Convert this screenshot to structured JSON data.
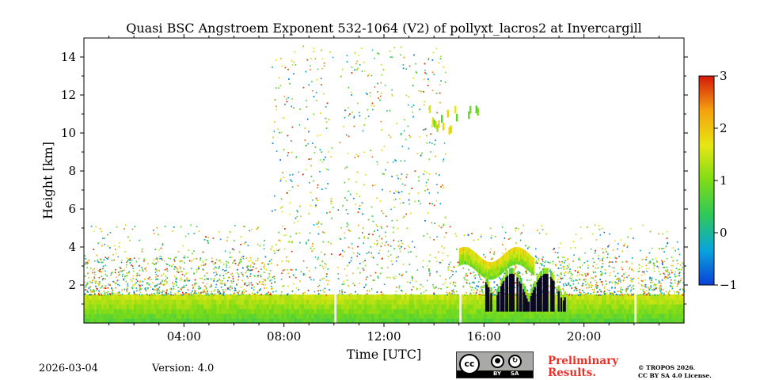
{
  "chart_data": {
    "type": "heatmap",
    "title": "Quasi BSC Angstroem Exponent 532-1064 (V2) of pollyxt_lacros2 at Invercargill",
    "xlabel": "Time [UTC]",
    "ylabel": "Height [km]",
    "xlim_hours": [
      0,
      24
    ],
    "ylim_km": [
      0,
      15
    ],
    "x_ticks": [
      {
        "hour": 4,
        "label": "04:00"
      },
      {
        "hour": 8,
        "label": "08:00"
      },
      {
        "hour": 12,
        "label": "12:00"
      },
      {
        "hour": 16,
        "label": "16:00"
      },
      {
        "hour": 20,
        "label": "20:00"
      }
    ],
    "y_ticks": [
      {
        "km": 2,
        "label": "2"
      },
      {
        "km": 4,
        "label": "4"
      },
      {
        "km": 6,
        "label": "6"
      },
      {
        "km": 8,
        "label": "8"
      },
      {
        "km": 10,
        "label": "10"
      },
      {
        "km": 12,
        "label": "12"
      },
      {
        "km": 14,
        "label": "14"
      }
    ],
    "colorbar": {
      "range": [
        -1,
        3
      ],
      "ticks": [
        {
          "value": 3,
          "label": "3"
        },
        {
          "value": 2,
          "label": "2"
        },
        {
          "value": 1,
          "label": "1"
        },
        {
          "value": 0,
          "label": "0"
        },
        {
          "value": -1,
          "label": "−1"
        }
      ],
      "colors": [
        "#0b3fd8",
        "#08a5dc",
        "#2ec85a",
        "#7ddc16",
        "#e6e613",
        "#f5a20e",
        "#d5180a"
      ]
    },
    "data_gaps_hours": [
      10.05,
      15.05,
      22.05
    ],
    "features": {
      "boundary_layer": {
        "top_km": 1.5,
        "value": 1.0
      },
      "dark_aerosol_layer": {
        "start_hour": 16.0,
        "end_hour": 19.3,
        "base_km": 0.1,
        "top_km": 2.6,
        "value": -1.2
      },
      "elevated_layer": {
        "start_hour": 15.0,
        "end_hour": 18.0,
        "height_km": 3.6,
        "value": 2.0
      },
      "high_cloud": {
        "start_hour": 13.8,
        "end_hour": 15.8,
        "height_km": 10.5,
        "value": 1.0
      }
    }
  },
  "footer": {
    "date": "2026-03-04",
    "version": "Version: 4.0",
    "preliminary_line1": "Preliminary",
    "preliminary_line2": "Results.",
    "license_line1": "© TROPOS 2026.",
    "license_line2": "CC BY SA 4.0 License.",
    "badge_cc": "cc",
    "badge_by": "BY",
    "badge_sa": "SA"
  }
}
